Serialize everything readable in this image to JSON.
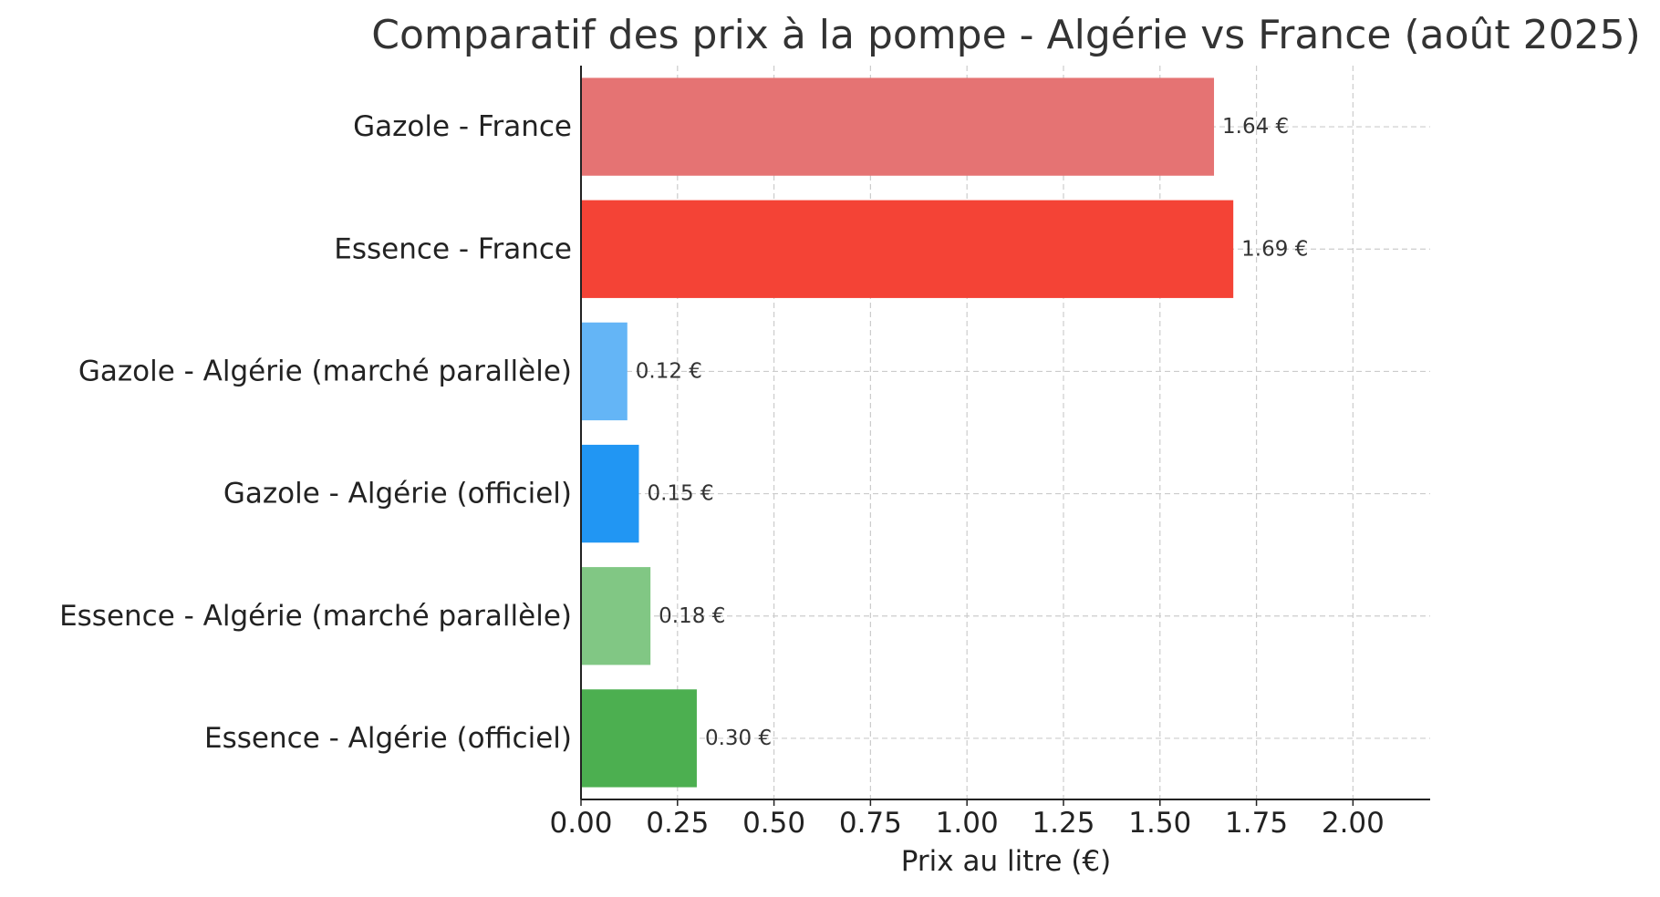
{
  "chart_data": {
    "type": "bar",
    "orientation": "horizontal",
    "title": "Comparatif des prix à la pompe - Algérie vs France (août 2025)",
    "xlabel": "Prix au litre (€)",
    "ylabel": "",
    "xlim": [
      0,
      2.2
    ],
    "xticks": [
      "0.00",
      "0.25",
      "0.50",
      "0.75",
      "1.00",
      "1.25",
      "1.50",
      "1.75",
      "2.00"
    ],
    "grid": true,
    "categories": [
      "Gazole - France",
      "Essence - France",
      "Gazole - Algérie (marché parallèle)",
      "Gazole - Algérie (officiel)",
      "Essence - Algérie (marché parallèle)",
      "Essence - Algérie (officiel)"
    ],
    "values": [
      1.64,
      1.69,
      0.12,
      0.15,
      0.18,
      0.3
    ],
    "value_labels": [
      "1.64 €",
      "1.69 €",
      "0.12 €",
      "0.15 €",
      "0.18 €",
      "0.30 €"
    ],
    "colors": [
      "#e57373",
      "#f44336",
      "#64b5f6",
      "#2196f3",
      "#81c784",
      "#4caf50"
    ]
  }
}
